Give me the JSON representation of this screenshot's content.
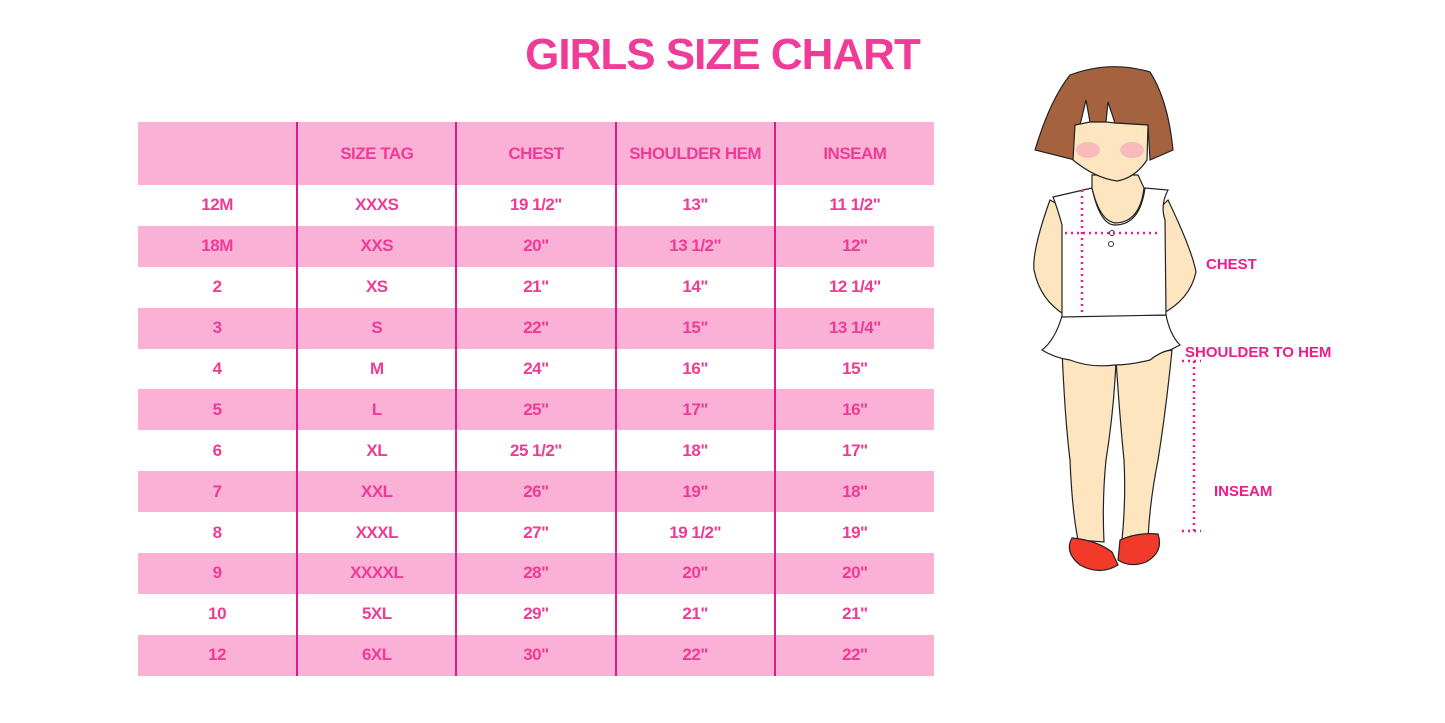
{
  "title": "GIRLS SIZE CHART",
  "table": {
    "headers": [
      "",
      "SIZE TAG",
      "CHEST",
      "SHOULDER HEM",
      "INSEAM"
    ],
    "rows": [
      [
        "12M",
        "XXXS",
        "19 1/2\"",
        "13\"",
        "11 1/2\""
      ],
      [
        "18M",
        "XXS",
        "20\"",
        "13 1/2\"",
        "12\""
      ],
      [
        "2",
        "XS",
        "21\"",
        "14\"",
        "12 1/4\""
      ],
      [
        "3",
        "S",
        "22\"",
        "15\"",
        "13 1/4\""
      ],
      [
        "4",
        "M",
        "24\"",
        "16\"",
        "15\""
      ],
      [
        "5",
        "L",
        "25\"",
        "17\"",
        "16\""
      ],
      [
        "6",
        "XL",
        "25 1/2\"",
        "18\"",
        "17\""
      ],
      [
        "7",
        "XXL",
        "26\"",
        "19\"",
        "18\""
      ],
      [
        "8",
        "XXXL",
        "27\"",
        "19 1/2\"",
        "19\""
      ],
      [
        "9",
        "XXXXL",
        "28\"",
        "20\"",
        "20\""
      ],
      [
        "10",
        "5XL",
        "29\"",
        "21\"",
        "21\""
      ],
      [
        "12",
        "6XL",
        "30\"",
        "22\"",
        "22\""
      ]
    ]
  },
  "figure": {
    "chest_label": "CHEST",
    "shoulder_label": "SHOULDER TO HEM",
    "inseam_label": "INSEAM"
  },
  "colors": {
    "accent": "#f03c98",
    "row_pink": "#fbb0d6",
    "divider": "#e0188a"
  }
}
